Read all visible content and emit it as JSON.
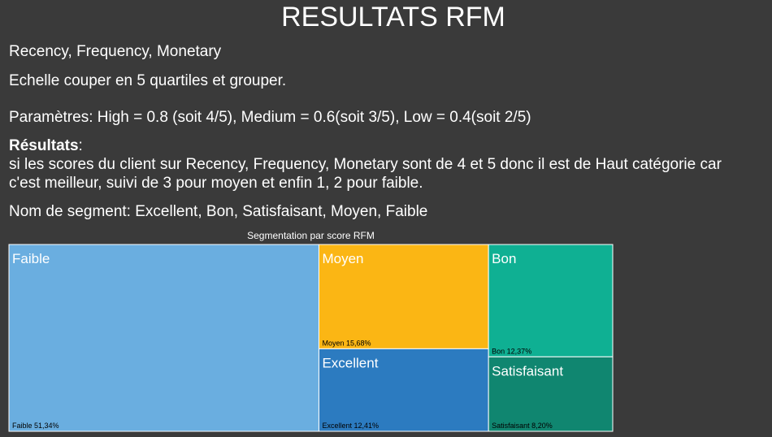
{
  "page": {
    "title": "RESULTATS RFM",
    "line1": "Recency, Frequency, Monetary",
    "line2": "Echelle couper en 5 quartiles et grouper.",
    "line3": "Paramètres: High = 0.8 (soit 4/5), Medium = 0.6(soit 3/5), Low = 0.4(soit 2/5)",
    "results_label": "Résultats",
    "results_colon": ":",
    "results_line1": "si les  scores du client sur Recency, Frequency, Monetary  sont de 4 et 5 donc il est de Haut catégorie car",
    "results_line2": "c'est meilleur, suivi de  3 pour moyen et enfin 1, 2 pour faible.",
    "segments_line": "Nom de segment: Excellent, Bon, Satisfaisant, Moyen, Faible"
  },
  "chart_data": {
    "type": "treemap",
    "title": "Segmentation par score RFM",
    "segments": [
      {
        "name": "Faible",
        "value": 51.34,
        "value_label": "Faible 51,34%",
        "color": "#6aaee0"
      },
      {
        "name": "Moyen",
        "value": 15.68,
        "value_label": "Moyen 15,68%",
        "color": "#fbb614"
      },
      {
        "name": "Excellent",
        "value": 12.41,
        "value_label": "Excellent 12,41%",
        "color": "#2c7bc0"
      },
      {
        "name": "Bon",
        "value": 12.37,
        "value_label": "Bon 12,37%",
        "color": "#0fb093"
      },
      {
        "name": "Satisfaisant",
        "value": 8.2,
        "value_label": "Satisfaisant 8,20%",
        "color": "#108670"
      }
    ]
  }
}
